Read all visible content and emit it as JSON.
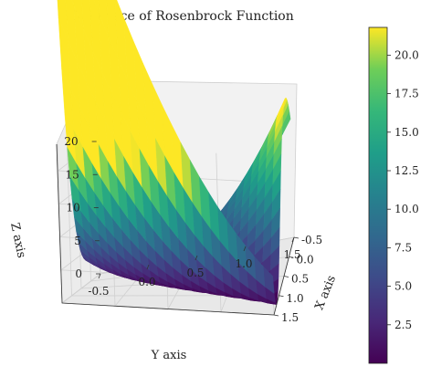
{
  "chart_data": {
    "type": "surface3d",
    "title": "3D Surface of Rosenbrock Function",
    "function": "Rosenbrock",
    "xlabel": "X axis",
    "ylabel": "Y axis",
    "zlabel": "Z axis",
    "x_range": [
      -0.5,
      1.5
    ],
    "y_range": [
      -0.5,
      1.5
    ],
    "z_range": [
      0,
      24
    ],
    "x_ticks": [
      "-0.5",
      "0.0",
      "0.5",
      "1.0",
      "1.5"
    ],
    "y_ticks": [
      "-0.5",
      "0.0",
      "0.5",
      "1.0",
      "1.5"
    ],
    "z_ticks": [
      "0",
      "5",
      "10",
      "15",
      "20"
    ],
    "colormap": "viridis",
    "colorbar": {
      "range": [
        0.0,
        21.8
      ],
      "ticks": [
        "2.5",
        "5.0",
        "7.5",
        "10.0",
        "12.5",
        "15.0",
        "17.5",
        "20.0"
      ]
    },
    "grid": true
  }
}
